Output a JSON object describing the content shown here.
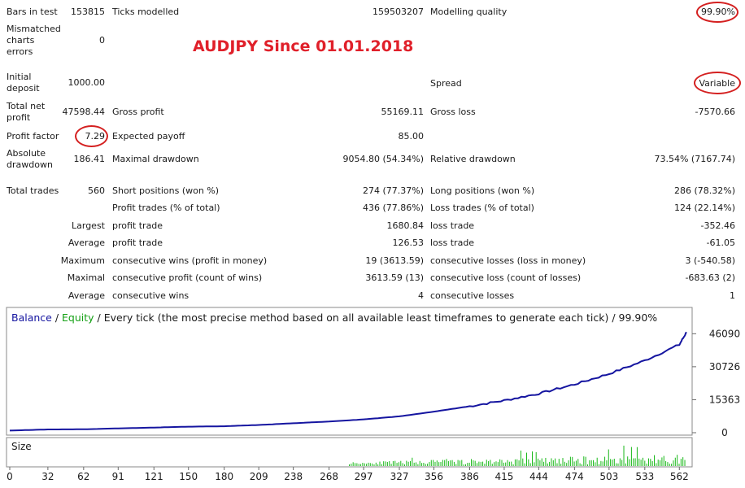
{
  "report": {
    "bars_in_test": {
      "label": "Bars in test",
      "value": "153815"
    },
    "ticks_modelled": {
      "label": "Ticks modelled",
      "value": "159503207"
    },
    "modelling_quality": {
      "label": "Modelling quality",
      "value": "99.90%"
    },
    "mismatched": {
      "label": "Mismatched charts errors",
      "value": "0"
    },
    "initial_deposit": {
      "label": "Initial deposit",
      "value": "1000.00"
    },
    "spread": {
      "label": "Spread",
      "value": "Variable"
    },
    "total_net_profit": {
      "label": "Total net profit",
      "value": "47598.44"
    },
    "gross_profit": {
      "label": "Gross profit",
      "value": "55169.11"
    },
    "gross_loss": {
      "label": "Gross loss",
      "value": "-7570.66"
    },
    "profit_factor": {
      "label": "Profit factor",
      "value": "7.29"
    },
    "expected_payoff": {
      "label": "Expected payoff",
      "value": "85.00"
    },
    "absolute_drawdown": {
      "label": "Absolute drawdown",
      "value": "186.41"
    },
    "maximal_drawdown": {
      "label": "Maximal drawdown",
      "value": "9054.80 (54.34%)"
    },
    "relative_drawdown": {
      "label": "Relative drawdown",
      "value": "73.54% (7167.74)"
    },
    "total_trades": {
      "label": "Total trades",
      "value": "560"
    },
    "short_positions": {
      "label": "Short positions (won %)",
      "value": "274 (77.37%)"
    },
    "long_positions": {
      "label": "Long positions (won %)",
      "value": "286 (78.32%)"
    },
    "profit_trades": {
      "label": "Profit trades (% of total)",
      "value": "436 (77.86%)"
    },
    "loss_trades": {
      "label": "Loss trades (% of total)",
      "value": "124 (22.14%)"
    },
    "largest": {
      "prefix": "Largest",
      "profit_label": "profit trade",
      "profit_value": "1680.84",
      "loss_label": "loss trade",
      "loss_value": "-352.46"
    },
    "average": {
      "prefix": "Average",
      "profit_label": "profit trade",
      "profit_value": "126.53",
      "loss_label": "loss trade",
      "loss_value": "-61.05"
    },
    "maximum": {
      "prefix": "Maximum",
      "profit_label": "consecutive wins (profit in money)",
      "profit_value": "19 (3613.59)",
      "loss_label": "consecutive losses (loss in money)",
      "loss_value": "3 (-540.58)"
    },
    "maximal": {
      "prefix": "Maximal",
      "profit_label": "consecutive profit (count of wins)",
      "profit_value": "3613.59 (13)",
      "loss_label": "consecutive loss (count of losses)",
      "loss_value": "-683.63 (2)"
    },
    "average_consec": {
      "prefix": "Average",
      "profit_label": "consecutive wins",
      "profit_value": "4",
      "loss_label": "consecutive losses",
      "loss_value": "1"
    }
  },
  "headline": "AUDJPY Since 01.01.2018",
  "chart_data": {
    "type": "line",
    "legend": {
      "balance": "Balance",
      "sep1": " / ",
      "equity": "Equity",
      "sep2": " / ",
      "rest": "Every tick (the most precise method based on all available least timeframes to generate each tick) / 99.90%"
    },
    "size_label": "Size",
    "x_ticks": [
      0,
      32,
      62,
      91,
      121,
      150,
      180,
      209,
      238,
      268,
      297,
      327,
      356,
      386,
      415,
      444,
      474,
      503,
      533,
      562
    ],
    "y_ticks": [
      46090,
      30726,
      15363,
      0
    ],
    "xlim": [
      0,
      570
    ],
    "ylim": [
      0,
      50000
    ],
    "series": [
      {
        "name": "Balance",
        "color": "#1515a0",
        "x": [
          0,
          32,
          62,
          91,
          121,
          150,
          180,
          209,
          238,
          268,
          297,
          327,
          356,
          386,
          415,
          444,
          474,
          503,
          533,
          562,
          568
        ],
        "y": [
          1000,
          1500,
          1600,
          2000,
          2400,
          2800,
          3000,
          3600,
          4400,
          5200,
          6200,
          7600,
          9800,
          12300,
          15000,
          18200,
          22500,
          27400,
          33600,
          41000,
          46800
        ]
      }
    ],
    "equity_color": "#14a014",
    "volume_color": "#18b818",
    "volume_start": 285,
    "volume_end": 568
  },
  "colors": {
    "circle": "#d42020",
    "headline": "#e0202a"
  }
}
